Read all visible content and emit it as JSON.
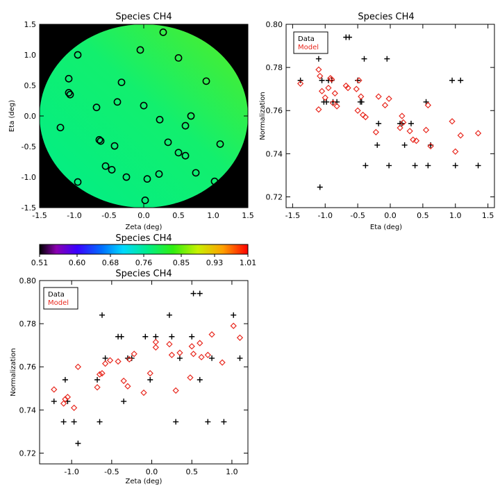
{
  "panels": {
    "map": {
      "title": "Species CH4",
      "xlabel": "Zeta (deg)",
      "ylabel": "Eta (deg)",
      "xticks": [
        "-1.5",
        "-1.0",
        "-0.5",
        "0.0",
        "0.5",
        "1.0",
        "1.5"
      ],
      "yticks": [
        "-1.5",
        "-1.0",
        "-0.5",
        "0.0",
        "0.5",
        "1.0",
        "1.5"
      ]
    },
    "colorbar": {
      "title": "Species CH4",
      "ticks": [
        "0.51",
        "0.60",
        "0.68",
        "0.76",
        "0.85",
        "0.93",
        "1.01"
      ]
    },
    "eta": {
      "title": "Species CH4",
      "xlabel": "Eta (deg)",
      "ylabel": "Normalization",
      "xticks": [
        "-1.5",
        "-1.0",
        "-0.5",
        "0.0",
        "0.5",
        "1.0",
        "1.5"
      ],
      "yticks": [
        "0.72",
        "0.74",
        "0.76",
        "0.78",
        "0.80"
      ],
      "legend_data": "Data",
      "legend_model": "Model"
    },
    "zeta": {
      "title": "Species CH4",
      "xlabel": "Zeta (deg)",
      "ylabel": "Normalization",
      "xticks": [
        "-1.0",
        "-0.5",
        "0.0",
        "0.5",
        "1.0"
      ],
      "yticks": [
        "0.72",
        "0.74",
        "0.76",
        "0.78",
        "0.80"
      ],
      "legend_data": "Data",
      "legend_model": "Model"
    }
  },
  "colors": {
    "data": "#000000",
    "model": "#e8281e",
    "map_background": "#000000",
    "map_fill_low": "#00ee88",
    "map_fill_high": "#55ee22"
  },
  "chart_data": [
    {
      "type": "scatter",
      "title": "Species CH4",
      "xlabel": "Zeta (deg)",
      "ylabel": "Eta (deg)",
      "xlim": [
        -1.5,
        1.5
      ],
      "ylim": [
        -1.5,
        1.5
      ],
      "background_colormap_range": [
        0.51,
        1.01
      ],
      "points": [
        [
          0.28,
          1.37
        ],
        [
          -0.05,
          1.08
        ],
        [
          -0.95,
          1.0
        ],
        [
          0.5,
          0.95
        ],
        [
          -1.08,
          0.61
        ],
        [
          0.9,
          0.57
        ],
        [
          -0.32,
          0.55
        ],
        [
          -1.08,
          0.38
        ],
        [
          -1.06,
          0.35
        ],
        [
          -0.38,
          0.23
        ],
        [
          0.0,
          0.17
        ],
        [
          -0.68,
          0.14
        ],
        [
          0.68,
          0.0
        ],
        [
          0.23,
          -0.06
        ],
        [
          0.6,
          -0.16
        ],
        [
          -1.2,
          -0.19
        ],
        [
          -0.64,
          -0.39
        ],
        [
          -0.62,
          -0.41
        ],
        [
          0.35,
          -0.43
        ],
        [
          -0.42,
          -0.49
        ],
        [
          1.1,
          -0.46
        ],
        [
          0.5,
          -0.6
        ],
        [
          0.6,
          -0.65
        ],
        [
          -0.55,
          -0.82
        ],
        [
          -0.46,
          -0.88
        ],
        [
          0.22,
          -0.95
        ],
        [
          0.75,
          -0.93
        ],
        [
          -0.25,
          -1.0
        ],
        [
          0.05,
          -1.03
        ],
        [
          -0.95,
          -1.08
        ],
        [
          1.02,
          -1.07
        ],
        [
          0.02,
          -1.38
        ]
      ]
    },
    {
      "type": "scatter",
      "title": "Species CH4",
      "xlabel": "Eta (deg)",
      "ylabel": "Normalization",
      "xlim": [
        -1.6,
        1.6
      ],
      "ylim": [
        0.715,
        0.8
      ],
      "legend": "top-left",
      "series": [
        {
          "name": "Data",
          "marker": "plus",
          "points": [
            [
              -1.38,
              0.774
            ],
            [
              -1.1,
              0.784
            ],
            [
              -1.08,
              0.7245
            ],
            [
              -1.05,
              0.774
            ],
            [
              -1.02,
              0.764
            ],
            [
              -0.98,
              0.764
            ],
            [
              -0.95,
              0.774
            ],
            [
              -0.9,
              0.774
            ],
            [
              -0.88,
              0.764
            ],
            [
              -0.82,
              0.764
            ],
            [
              -0.68,
              0.794
            ],
            [
              -0.63,
              0.794
            ],
            [
              -0.5,
              0.774
            ],
            [
              -0.46,
              0.764
            ],
            [
              -0.44,
              0.764
            ],
            [
              -0.4,
              0.784
            ],
            [
              -0.38,
              0.7345
            ],
            [
              -0.2,
              0.744
            ],
            [
              -0.18,
              0.754
            ],
            [
              -0.05,
              0.784
            ],
            [
              -0.02,
              0.7345
            ],
            [
              0.15,
              0.754
            ],
            [
              0.18,
              0.754
            ],
            [
              0.22,
              0.744
            ],
            [
              0.32,
              0.754
            ],
            [
              0.38,
              0.7345
            ],
            [
              0.55,
              0.764
            ],
            [
              0.58,
              0.7345
            ],
            [
              0.62,
              0.744
            ],
            [
              0.95,
              0.774
            ],
            [
              1.0,
              0.7345
            ],
            [
              1.08,
              0.774
            ],
            [
              1.35,
              0.7345
            ]
          ]
        },
        {
          "name": "Model",
          "marker": "diamond",
          "points": [
            [
              -1.38,
              0.7725
            ],
            [
              -1.1,
              0.779
            ],
            [
              -1.08,
              0.776
            ],
            [
              -1.1,
              0.7605
            ],
            [
              -1.05,
              0.769
            ],
            [
              -1.0,
              0.766
            ],
            [
              -0.95,
              0.7705
            ],
            [
              -0.92,
              0.775
            ],
            [
              -0.9,
              0.7745
            ],
            [
              -0.88,
              0.7635
            ],
            [
              -0.85,
              0.768
            ],
            [
              -0.82,
              0.762
            ],
            [
              -0.68,
              0.7715
            ],
            [
              -0.65,
              0.7705
            ],
            [
              -0.52,
              0.77
            ],
            [
              -0.48,
              0.774
            ],
            [
              -0.5,
              0.76
            ],
            [
              -0.45,
              0.7665
            ],
            [
              -0.42,
              0.758
            ],
            [
              -0.38,
              0.757
            ],
            [
              -0.22,
              0.75
            ],
            [
              -0.18,
              0.7665
            ],
            [
              -0.08,
              0.7625
            ],
            [
              -0.02,
              0.7655
            ],
            [
              0.15,
              0.752
            ],
            [
              0.18,
              0.7575
            ],
            [
              0.2,
              0.7545
            ],
            [
              0.3,
              0.7505
            ],
            [
              0.35,
              0.7465
            ],
            [
              0.4,
              0.746
            ],
            [
              0.55,
              0.751
            ],
            [
              0.58,
              0.7625
            ],
            [
              0.62,
              0.7435
            ],
            [
              0.95,
              0.755
            ],
            [
              1.0,
              0.741
            ],
            [
              1.08,
              0.7485
            ],
            [
              1.35,
              0.7495
            ]
          ]
        }
      ]
    },
    {
      "type": "scatter",
      "title": "Species CH4",
      "xlabel": "Zeta (deg)",
      "ylabel": "Normalization",
      "xlim": [
        -1.4,
        1.2
      ],
      "ylim": [
        0.715,
        0.8
      ],
      "legend": "top-left",
      "series": [
        {
          "name": "Data",
          "marker": "plus",
          "points": [
            [
              -1.22,
              0.744
            ],
            [
              -1.1,
              0.7345
            ],
            [
              -1.08,
              0.754
            ],
            [
              -1.05,
              0.744
            ],
            [
              -0.97,
              0.7345
            ],
            [
              -0.92,
              0.7245
            ],
            [
              -0.68,
              0.754
            ],
            [
              -0.65,
              0.7345
            ],
            [
              -0.62,
              0.784
            ],
            [
              -0.58,
              0.764
            ],
            [
              -0.42,
              0.774
            ],
            [
              -0.38,
              0.774
            ],
            [
              -0.35,
              0.744
            ],
            [
              -0.3,
              0.764
            ],
            [
              -0.25,
              0.764
            ],
            [
              -0.08,
              0.774
            ],
            [
              -0.02,
              0.754
            ],
            [
              0.05,
              0.774
            ],
            [
              0.22,
              0.784
            ],
            [
              0.25,
              0.774
            ],
            [
              0.3,
              0.7345
            ],
            [
              0.35,
              0.764
            ],
            [
              0.5,
              0.774
            ],
            [
              0.52,
              0.794
            ],
            [
              0.6,
              0.794
            ],
            [
              0.6,
              0.754
            ],
            [
              0.7,
              0.7345
            ],
            [
              0.75,
              0.764
            ],
            [
              0.9,
              0.7345
            ],
            [
              1.02,
              0.784
            ],
            [
              1.1,
              0.764
            ]
          ]
        },
        {
          "name": "Model",
          "marker": "diamond",
          "points": [
            [
              -1.22,
              0.7495
            ],
            [
              -1.1,
              0.743
            ],
            [
              -1.08,
              0.745
            ],
            [
              -1.05,
              0.746
            ],
            [
              -0.97,
              0.741
            ],
            [
              -0.92,
              0.76
            ],
            [
              -0.68,
              0.7505
            ],
            [
              -0.65,
              0.7565
            ],
            [
              -0.62,
              0.757
            ],
            [
              -0.58,
              0.7615
            ],
            [
              -0.52,
              0.763
            ],
            [
              -0.42,
              0.7625
            ],
            [
              -0.35,
              0.7535
            ],
            [
              -0.3,
              0.751
            ],
            [
              -0.28,
              0.7635
            ],
            [
              -0.22,
              0.766
            ],
            [
              -0.1,
              0.748
            ],
            [
              -0.02,
              0.757
            ],
            [
              0.05,
              0.7715
            ],
            [
              0.05,
              0.769
            ],
            [
              0.22,
              0.7705
            ],
            [
              0.25,
              0.7655
            ],
            [
              0.3,
              0.749
            ],
            [
              0.35,
              0.7665
            ],
            [
              0.48,
              0.755
            ],
            [
              0.5,
              0.7695
            ],
            [
              0.52,
              0.766
            ],
            [
              0.6,
              0.771
            ],
            [
              0.62,
              0.7645
            ],
            [
              0.7,
              0.7655
            ],
            [
              0.75,
              0.775
            ],
            [
              0.88,
              0.762
            ],
            [
              1.02,
              0.779
            ],
            [
              1.1,
              0.7735
            ]
          ]
        }
      ]
    }
  ]
}
